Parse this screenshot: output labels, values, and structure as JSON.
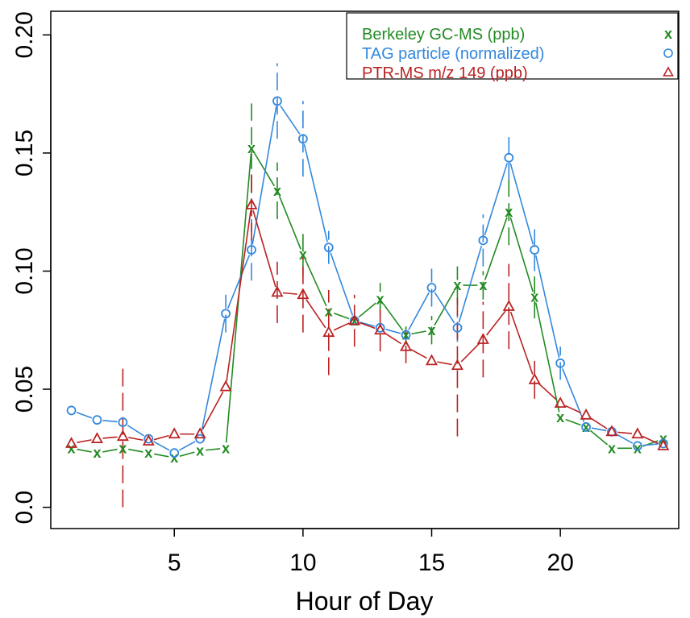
{
  "chart_data": {
    "type": "line",
    "xlabel": "Hour of Day",
    "ylabel": "",
    "xlim": [
      0.2,
      24.6
    ],
    "ylim": [
      -0.009,
      0.21
    ],
    "x_ticks": [
      5,
      10,
      15,
      20
    ],
    "y_ticks": [
      0.0,
      0.05,
      0.1,
      0.15,
      0.2
    ],
    "x_tick_labels": [
      "5",
      "10",
      "15",
      "20"
    ],
    "y_tick_labels": [
      "0.0",
      "0.05",
      "0.10",
      "0.15",
      "0.20"
    ],
    "legend_position": "top-right",
    "grid": false,
    "x": [
      1,
      2,
      3,
      4,
      5,
      6,
      7,
      8,
      9,
      10,
      11,
      12,
      13,
      14,
      15,
      16,
      17,
      18,
      19,
      20,
      21,
      22,
      23,
      24
    ],
    "series": [
      {
        "name": "Berkeley GC-MS (ppb)",
        "color": "#228B22",
        "marker": "x",
        "values": [
          0.025,
          0.023,
          0.025,
          0.023,
          0.021,
          0.024,
          0.025,
          0.152,
          0.134,
          0.107,
          0.083,
          0.079,
          0.088,
          0.073,
          0.075,
          0.094,
          0.094,
          0.125,
          0.089,
          0.038,
          0.034,
          0.025,
          0.025,
          0.029
        ],
        "error": [
          0,
          0,
          0,
          0,
          0,
          0,
          0,
          0.019,
          0.012,
          0.009,
          0,
          0,
          0.007,
          0.004,
          0.006,
          0.008,
          0.006,
          0.014,
          0.009,
          0,
          0,
          0,
          0,
          0
        ]
      },
      {
        "name": "TAG particle (normalized)",
        "color": "#3388DD",
        "marker": "circle",
        "values": [
          0.041,
          0.037,
          0.036,
          0.029,
          0.023,
          0.029,
          0.082,
          0.109,
          0.172,
          0.156,
          0.11,
          0.079,
          0.076,
          0.073,
          0.093,
          0.076,
          0.113,
          0.148,
          0.109,
          0.061,
          0.034,
          0.032,
          0.026,
          0.027
        ],
        "error": [
          0,
          0,
          0,
          0,
          0,
          0,
          0.008,
          0.013,
          0.016,
          0.016,
          0.007,
          0,
          0,
          0,
          0.008,
          0.006,
          0.011,
          0.009,
          0.009,
          0.007,
          0,
          0,
          0,
          0
        ]
      },
      {
        "name": "PTR-MS m/z 149 (ppb)",
        "color": "#BB2222",
        "marker": "triangle",
        "values": [
          0.027,
          0.029,
          0.03,
          0.028,
          0.031,
          0.031,
          0.051,
          0.128,
          0.091,
          0.09,
          0.074,
          0.079,
          0.075,
          0.068,
          0.062,
          0.06,
          0.071,
          0.085,
          0.054,
          0.044,
          0.039,
          0.032,
          0.031,
          0.026
        ],
        "error": [
          0,
          0,
          0.03,
          0,
          0,
          0,
          0,
          0.015,
          0.013,
          0.016,
          0.018,
          0.011,
          0.009,
          0.007,
          0,
          0.03,
          0.016,
          0.018,
          0.008,
          0,
          0,
          0,
          0,
          0
        ]
      }
    ]
  }
}
